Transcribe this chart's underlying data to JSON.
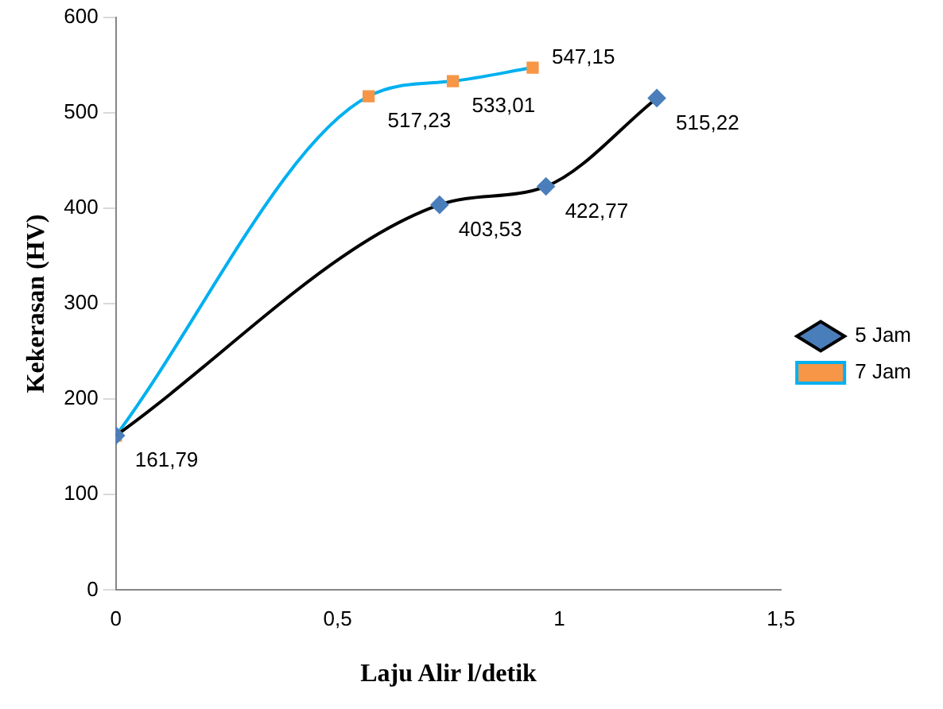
{
  "chart_data": {
    "type": "line",
    "xlabel": "Laju Alir l/detik",
    "ylabel": "Kekerasan (HV)",
    "xlim": [
      0,
      1.5
    ],
    "xticks": [
      0,
      {
        "value": 0.5,
        "label": "0,5"
      },
      1,
      {
        "value": 1.5,
        "label": "1,5"
      }
    ],
    "ylim": [
      0,
      600
    ],
    "yticks": [
      0,
      100,
      200,
      300,
      400,
      500,
      600
    ],
    "grid": false,
    "legend": "right",
    "series": [
      {
        "name": "5 Jam",
        "color": "#000000",
        "colors": [
          "#4a7ebb",
          "#4a7ebb",
          "#4a7ebb",
          "#4a7ebb"
        ],
        "marker": "diamond",
        "x": [
          0,
          0.73,
          0.97,
          1.22
        ],
        "values": [
          161.79,
          403.53,
          422.77,
          515.22
        ],
        "value_labels": [
          null,
          "403,53",
          "422,77",
          "515,22"
        ]
      },
      {
        "name": "7 Jam",
        "color": "#00b0f0",
        "colors": [
          "#f79646",
          "#f79646",
          "#f79646",
          "#f79646"
        ],
        "marker": "square",
        "x": [
          0,
          0.57,
          0.76,
          0.94
        ],
        "values": [
          161.79,
          517.23,
          533.01,
          547.15
        ],
        "value_labels": [
          "161,79",
          "517,23",
          "533,01",
          "547,15"
        ]
      }
    ]
  }
}
